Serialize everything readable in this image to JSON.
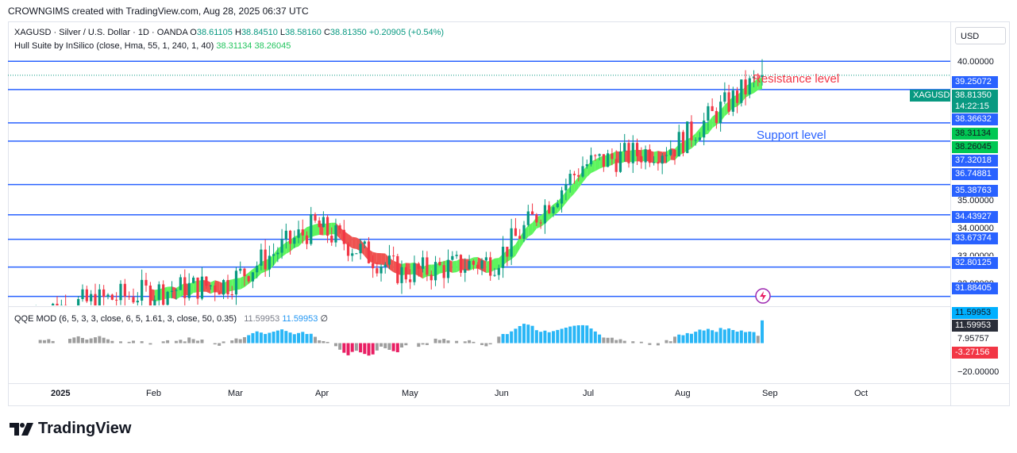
{
  "header": "CROWNGIMS created with TradingView.com, Aug 28, 2025 06:37 UTC",
  "symbol_legend": {
    "name": "XAGUSD · Silver / U.S. Dollar · 1D · OANDA",
    "open_label": "O",
    "open": "38.61105",
    "high_label": "H",
    "high": "38.84510",
    "low_label": "L",
    "low": "38.58160",
    "close_label": "C",
    "close": "38.81350",
    "change": "+0.20905 (+0.54%)"
  },
  "hull_legend": {
    "name": "Hull Suite by InSilico (close, Hma, 55, 1, 240, 1, 40)",
    "v1": "38.31134",
    "v2": "38.26045"
  },
  "qqe_legend": {
    "name": "QQE MOD (6, 5, 3, 3, close, 6, 5, 1.61, 3, close, 50, 0.35)",
    "v1": "11.59953",
    "v2": "11.59953",
    "v3": "∅"
  },
  "currency": "USD",
  "annotations": {
    "resistance": "Resistance level",
    "support": "Support level"
  },
  "brand": "TradingView",
  "colors": {
    "up": "#089981",
    "down": "#f23645",
    "level": "#2962ff",
    "hull_up": "#5ef55e",
    "hull_down": "#ef5350",
    "qqe_up": "#29b6f6",
    "qqe_down": "#e91e63",
    "qqe_neutral": "#9e9e9e"
  },
  "price_axis": {
    "plain_ticks": [
      "40.00000",
      "35.00000",
      "34.00000",
      "33.00000",
      "32.00000"
    ],
    "symbol_tag": "XAGUSD",
    "last_price": "38.81350",
    "countdown": "14:22:15",
    "level_tags": [
      "39.25072",
      "38.36632",
      "37.32018",
      "36.74881",
      "35.38763",
      "34.43927",
      "33.67374",
      "32.80125",
      "31.88405"
    ],
    "hull_tags": [
      "38.31134",
      "38.26045"
    ]
  },
  "qqe_axis": {
    "tags": [
      "11.59953",
      "11.59953",
      "-3.27156"
    ],
    "plain": [
      "7.95757",
      "−20.00000"
    ]
  },
  "time_axis": [
    "2025",
    "Feb",
    "Mar",
    "Apr",
    "May",
    "Jun",
    "Jul",
    "Aug",
    "Sep",
    "Oct"
  ],
  "chart_data": {
    "type": "candlestick",
    "title": "XAGUSD · Silver / U.S. Dollar · 1D · OANDA",
    "ylim": [
      31.6,
      40.5
    ],
    "horizontal_levels": [
      39.25072,
      38.36632,
      37.32018,
      36.74881,
      35.38763,
      34.43927,
      33.67374,
      32.80125,
      31.88405
    ],
    "monthly_closes": [
      {
        "month": "Jan",
        "close": 32.0
      },
      {
        "month": "Feb",
        "close": 32.3
      },
      {
        "month": "Mar",
        "close": 34.1
      },
      {
        "month": "Apr",
        "close": 32.6
      },
      {
        "month": "May",
        "close": 33.0
      },
      {
        "month": "Jun",
        "close": 36.0
      },
      {
        "month": "Jul",
        "close": 36.6
      },
      {
        "month": "Aug",
        "close": 38.8
      }
    ],
    "last_close": 38.8135,
    "hull": [
      38.31134,
      38.26045
    ],
    "qqe": {
      "value": 11.59953,
      "ylim": [
        -20,
        18
      ]
    }
  }
}
